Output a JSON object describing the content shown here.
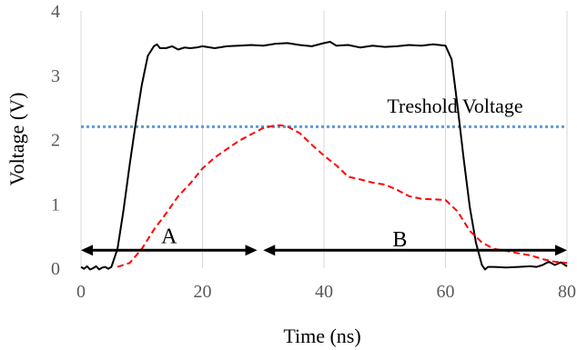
{
  "chart_data": {
    "type": "line",
    "xlabel": "Time (ns)",
    "ylabel": "Voltage (V)",
    "xlim": [
      0,
      80
    ],
    "ylim": [
      0,
      4
    ],
    "xticks": [
      "0",
      "20",
      "40",
      "60",
      "80"
    ],
    "yticks": [
      "0",
      "1",
      "2",
      "3",
      "4"
    ],
    "grid": "vertical",
    "colors": {
      "series1": "#000000",
      "series2": "#ff0000",
      "threshold": "#5b9bd5",
      "grid": "#d9d9d9",
      "tick_text": "#595959"
    },
    "series": [
      {
        "style": "solid",
        "x": [
          0,
          0.5,
          1,
          1.5,
          2,
          2.5,
          3,
          3.5,
          4,
          4.5,
          5,
          6,
          7,
          8,
          9,
          10,
          11,
          12,
          12.5,
          13,
          14,
          15,
          16,
          17,
          18,
          19,
          20,
          22,
          24,
          26,
          28,
          30,
          32,
          34,
          36,
          38,
          40,
          41,
          42,
          44,
          46,
          48,
          50,
          52,
          54,
          56,
          58,
          60,
          61,
          62,
          63,
          64,
          65,
          66,
          66.5,
          67,
          68,
          70,
          72,
          74,
          75,
          76,
          77,
          78,
          79,
          80
        ],
        "values": [
          0.02,
          -0.01,
          0.03,
          -0.02,
          0.0,
          0.03,
          -0.02,
          0.01,
          0.02,
          -0.01,
          0.02,
          0.3,
          0.9,
          1.6,
          2.25,
          2.85,
          3.3,
          3.45,
          3.48,
          3.42,
          3.42,
          3.45,
          3.4,
          3.43,
          3.42,
          3.43,
          3.45,
          3.42,
          3.45,
          3.46,
          3.47,
          3.46,
          3.49,
          3.5,
          3.47,
          3.45,
          3.5,
          3.52,
          3.46,
          3.47,
          3.43,
          3.46,
          3.44,
          3.45,
          3.47,
          3.46,
          3.48,
          3.46,
          3.25,
          2.5,
          1.7,
          0.95,
          0.4,
          0.05,
          -0.02,
          0.02,
          0.02,
          0.01,
          0.02,
          0.03,
          0.02,
          0.05,
          0.1,
          0.05,
          0.09,
          0.03
        ]
      },
      {
        "style": "dashed",
        "x": [
          6,
          8,
          10,
          12,
          14,
          16,
          18,
          20,
          22,
          24,
          26,
          28,
          30,
          32,
          33,
          34,
          36,
          38,
          40,
          42,
          44,
          46,
          48,
          50,
          52,
          54,
          56,
          58,
          60,
          62,
          64,
          66,
          68,
          70,
          72,
          74,
          76,
          78,
          80
        ],
        "values": [
          0.02,
          0.08,
          0.3,
          0.6,
          0.85,
          1.12,
          1.32,
          1.55,
          1.72,
          1.85,
          1.98,
          2.08,
          2.18,
          2.22,
          2.22,
          2.2,
          2.1,
          1.92,
          1.75,
          1.6,
          1.42,
          1.38,
          1.33,
          1.3,
          1.22,
          1.12,
          1.08,
          1.07,
          1.06,
          0.88,
          0.58,
          0.4,
          0.3,
          0.27,
          0.23,
          0.2,
          0.14,
          0.1,
          0.08
        ]
      }
    ],
    "threshold": {
      "value": 2.2,
      "label": "Treshold Voltage"
    },
    "annotations": [
      {
        "label": "A",
        "y": 0.28,
        "x_start": 0,
        "x_end": 29,
        "label_x": 14.5,
        "label_y": 0.5
      },
      {
        "label": "B",
        "y": 0.28,
        "x_start": 30,
        "x_end": 80,
        "label_x": 52.5,
        "label_y": 0.45
      }
    ]
  }
}
